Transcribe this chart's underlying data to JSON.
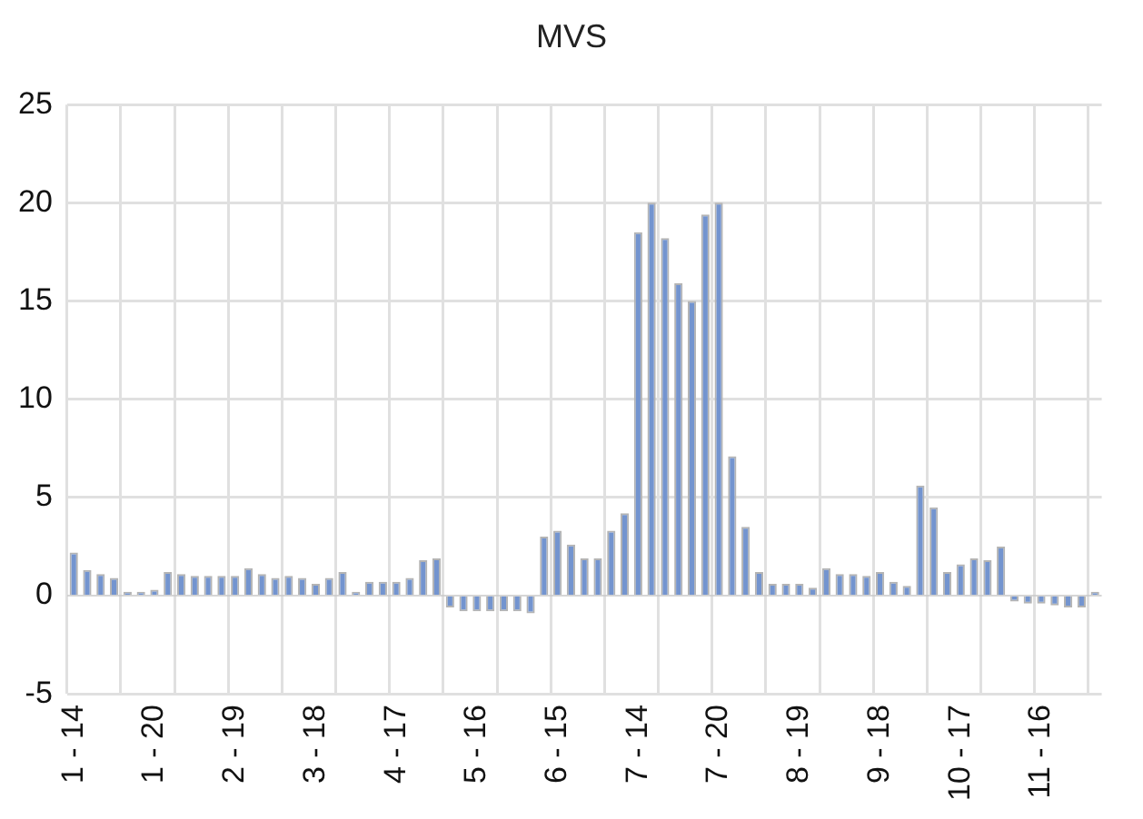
{
  "chart_data": {
    "type": "bar",
    "title": "MVS",
    "categories": [
      "1 - 14",
      null,
      null,
      null,
      null,
      null,
      "1 - 20",
      null,
      null,
      null,
      null,
      null,
      "2 - 19",
      null,
      null,
      null,
      null,
      null,
      "3 - 18",
      null,
      null,
      null,
      null,
      null,
      "4 - 17",
      null,
      null,
      null,
      null,
      null,
      "5 - 16",
      null,
      null,
      null,
      null,
      null,
      "6 - 15",
      null,
      null,
      null,
      null,
      null,
      "7 - 14",
      null,
      null,
      null,
      null,
      null,
      "7 - 20",
      null,
      null,
      null,
      null,
      null,
      "8 - 19",
      null,
      null,
      null,
      null,
      null,
      "9 - 18",
      null,
      null,
      null,
      null,
      null,
      "10 - 17",
      null,
      null,
      null,
      null,
      null,
      "11 - 16",
      null,
      null,
      null,
      null
    ],
    "values": [
      2.2,
      1.3,
      1.1,
      0.9,
      0.2,
      0.2,
      0.3,
      1.2,
      1.1,
      1.0,
      1.0,
      1.0,
      1.0,
      1.4,
      1.1,
      0.9,
      1.0,
      0.9,
      0.6,
      0.9,
      1.2,
      0.2,
      0.7,
      0.7,
      0.7,
      0.9,
      1.8,
      1.9,
      -0.6,
      -0.8,
      -0.8,
      -0.8,
      -0.8,
      -0.8,
      -0.9,
      3.0,
      3.3,
      2.6,
      1.9,
      1.9,
      3.3,
      4.2,
      18.5,
      20,
      18.2,
      15.9,
      15,
      19.4,
      20,
      7.1,
      3.5,
      1.2,
      0.6,
      0.6,
      0.6,
      0.4,
      1.4,
      1.1,
      1.1,
      1.0,
      1.2,
      0.7,
      0.5,
      5.6,
      4.5,
      1.2,
      1.6,
      1.9,
      1.8,
      2.5,
      -0.3,
      -0.4,
      -0.4,
      -0.5,
      -0.6,
      -0.6,
      0.2
    ],
    "color": "#7394cf",
    "ylim": [
      -5,
      25
    ],
    "yticks": [
      -5,
      0,
      5,
      10,
      15,
      20,
      25
    ],
    "grid": true
  }
}
